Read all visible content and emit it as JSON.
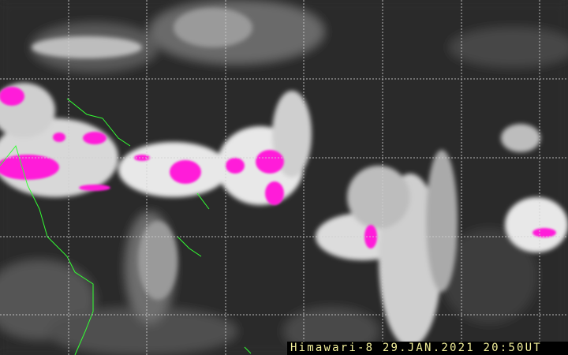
{
  "caption": "Himawari-8 29.JAN.2021 20:50UT",
  "colors": {
    "background": "#2b2b2b",
    "cloud": "#ffffff",
    "deep_convection": "#ff1ad9",
    "coastline": "#33ff33",
    "grid": "#d0d0d0",
    "caption_text": "#f2ef9a"
  }
}
